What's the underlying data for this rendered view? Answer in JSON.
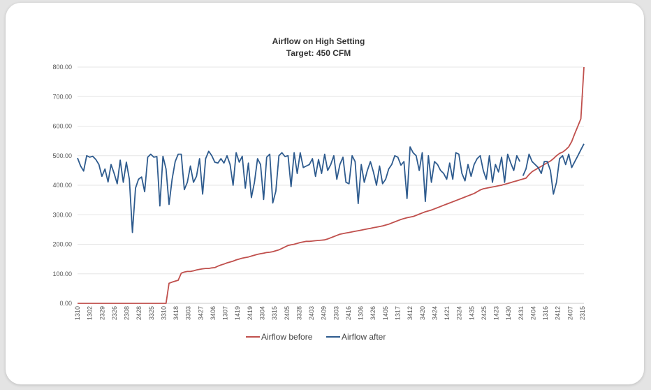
{
  "chart_data": {
    "type": "line",
    "title": "Airflow on High Setting",
    "subtitle": "Target: 450 CFM",
    "xlabel": "",
    "ylabel": "",
    "ylim": [
      0,
      800
    ],
    "y_ticks": [
      "0.00",
      "100.00",
      "200.00",
      "300.00",
      "400.00",
      "500.00",
      "600.00",
      "700.00",
      "800.00"
    ],
    "x_tick_labels": [
      "1310",
      "1302",
      "2329",
      "2326",
      "2308",
      "2428",
      "3325",
      "3310",
      "3418",
      "3303",
      "3427",
      "3406",
      "1307",
      "1419",
      "2419",
      "3304",
      "3315",
      "2405",
      "3328",
      "2403",
      "2409",
      "2303",
      "2416",
      "1306",
      "3426",
      "1405",
      "1317",
      "3412",
      "3420",
      "3424",
      "1421",
      "2324",
      "1435",
      "2425",
      "1423",
      "1430",
      "2431",
      "2404",
      "1316",
      "2412",
      "2407",
      "2315"
    ],
    "legend": "bottom",
    "series": [
      {
        "name": "Airflow before",
        "color": "#c0504d",
        "values": [
          0,
          0,
          0,
          0,
          0,
          0,
          0,
          0,
          0,
          0,
          0,
          0,
          0,
          0,
          0,
          0,
          0,
          0,
          0,
          0,
          0,
          0,
          0,
          0,
          0,
          0,
          0,
          0,
          0,
          0,
          68,
          72,
          75,
          78,
          102,
          106,
          108,
          108,
          110,
          113,
          115,
          117,
          118,
          118,
          120,
          121,
          126,
          130,
          133,
          137,
          140,
          143,
          147,
          150,
          153,
          155,
          157,
          160,
          163,
          166,
          168,
          170,
          172,
          173,
          175,
          178,
          181,
          186,
          191,
          196,
          198,
          200,
          203,
          206,
          208,
          210,
          210,
          211,
          212,
          213,
          214,
          215,
          218,
          222,
          226,
          230,
          234,
          236,
          238,
          240,
          242,
          244,
          246,
          248,
          250,
          252,
          254,
          256,
          258,
          260,
          262,
          265,
          268,
          272,
          276,
          280,
          284,
          287,
          290,
          292,
          294,
          298,
          302,
          306,
          310,
          313,
          316,
          320,
          324,
          328,
          332,
          336,
          340,
          344,
          348,
          352,
          356,
          360,
          364,
          368,
          372,
          378,
          384,
          388,
          390,
          392,
          394,
          396,
          398,
          400,
          403,
          406,
          409,
          412,
          415,
          418,
          421,
          424,
          436,
          446,
          452,
          458,
          464,
          470,
          476,
          482,
          490,
          500,
          508,
          512,
          520,
          530,
          548,
          575,
          600,
          625,
          800
        ]
      },
      {
        "name": "Airflow after",
        "color": "#2e5b8e",
        "values": [
          492,
          465,
          448,
          500,
          495,
          498,
          487,
          470,
          430,
          455,
          411,
          470,
          440,
          405,
          485,
          410,
          478,
          420,
          240,
          390,
          420,
          428,
          378,
          495,
          505,
          495,
          497,
          330,
          498,
          455,
          335,
          420,
          480,
          505,
          505,
          385,
          410,
          465,
          410,
          430,
          490,
          370,
          490,
          515,
          500,
          478,
          475,
          490,
          475,
          500,
          470,
          400,
          510,
          478,
          498,
          390,
          475,
          358,
          410,
          490,
          470,
          352,
          495,
          505,
          340,
          380,
          500,
          510,
          497,
          500,
          395,
          510,
          440,
          510,
          460,
          465,
          470,
          490,
          430,
          487,
          440,
          505,
          450,
          470,
          500,
          420,
          470,
          495,
          410,
          405,
          500,
          480,
          338,
          470,
          410,
          450,
          480,
          445,
          400,
          465,
          405,
          420,
          455,
          470,
          500,
          495,
          468,
          480,
          355,
          530,
          510,
          500,
          450,
          510,
          345,
          500,
          410,
          480,
          470,
          450,
          440,
          420,
          475,
          420,
          510,
          505,
          440,
          415,
          470,
          430,
          470,
          490,
          500,
          450,
          420,
          500,
          410,
          470,
          445,
          495,
          410,
          505,
          475,
          450,
          500,
          480,
          432,
          455,
          505,
          480,
          470,
          460,
          440,
          480,
          480,
          450,
          370,
          410,
          490,
          500,
          470,
          505,
          460,
          480,
          500,
          520,
          540
        ]
      }
    ]
  }
}
